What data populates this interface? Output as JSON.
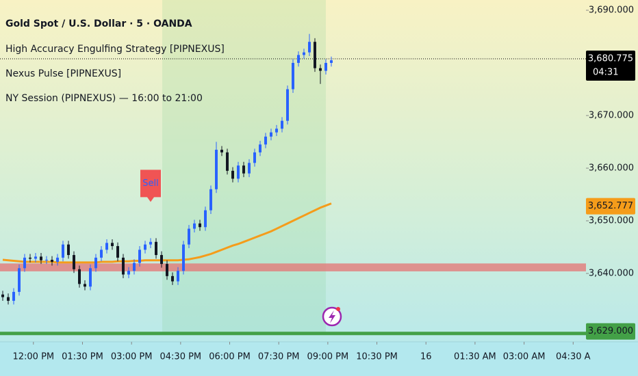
{
  "chart_data": {
    "type": "candlestick",
    "title": "Gold Spot / U.S. Dollar · 5 · OANDA",
    "indicators": [
      "High Accuracy Engulfing Strategy [PIPNEXUS]",
      "Nexus Pulse [PIPNEXUS]",
      "NY Session (PIPNEXUS) — 16:00 to 21:00"
    ],
    "up_color": "#2962ff",
    "down_color": "#131722",
    "x": [
      0,
      1,
      2,
      3,
      4,
      5,
      6,
      7,
      8,
      9,
      10,
      11,
      12,
      13,
      14,
      15,
      16,
      17,
      18,
      19,
      20,
      21,
      22,
      23,
      24,
      25,
      26,
      27,
      28,
      29,
      30,
      31,
      32,
      33,
      34,
      35,
      36,
      37,
      38,
      39,
      40,
      41,
      42,
      43,
      44,
      45,
      46,
      47,
      48,
      49,
      50,
      51,
      52,
      53,
      54,
      55,
      56,
      57,
      58,
      59,
      60
    ],
    "open": [
      3636,
      3635.5,
      3634.8,
      3636.5,
      3641,
      3643,
      3642.8,
      3643.2,
      3642.5,
      3642.6,
      3642.2,
      3643,
      3645.5,
      3643.5,
      3640.8,
      3638,
      3637.5,
      3641,
      3643,
      3644.5,
      3645.8,
      3645.2,
      3643,
      3639.8,
      3640.5,
      3642,
      3644.5,
      3645.5,
      3646,
      3643.5,
      3641.8,
      3639.5,
      3638.5,
      3640.5,
      3645.5,
      3648.5,
      3649.5,
      3648.8,
      3652,
      3656,
      3663.5,
      3663,
      3659.5,
      3658,
      3660.5,
      3659,
      3661,
      3663,
      3664.5,
      3666,
      3666.8,
      3667.5,
      3669,
      3675,
      3680,
      3681.5,
      3682,
      3684,
      3679,
      3678.5,
      3680
    ],
    "high": [
      3636.7,
      3636.2,
      3637.2,
      3641.7,
      3643.7,
      3643.7,
      3643.9,
      3643.9,
      3643.3,
      3643.3,
      3643.7,
      3646.2,
      3646.2,
      3644.2,
      3641.5,
      3638.7,
      3641.7,
      3643.7,
      3645.2,
      3646.5,
      3646.5,
      3645.9,
      3643.7,
      3641.2,
      3642.7,
      3645.2,
      3646.2,
      3646.7,
      3646.7,
      3644.2,
      3642.5,
      3640.2,
      3641.2,
      3646.2,
      3649.2,
      3650.2,
      3650.2,
      3652.7,
      3656.7,
      3665,
      3664.2,
      3663.7,
      3660.2,
      3661.2,
      3661.2,
      3661.7,
      3663.7,
      3665.2,
      3666.7,
      3667.5,
      3668.2,
      3669.7,
      3675.7,
      3680.7,
      3682.2,
      3682.7,
      3685.5,
      3684.7,
      3679.7,
      3680.7,
      3681.2
    ],
    "low": [
      3634.8,
      3634.1,
      3634.1,
      3635.8,
      3640.3,
      3642.1,
      3642.1,
      3641.8,
      3641.8,
      3641.5,
      3641.5,
      3642.3,
      3642.8,
      3640.1,
      3637.3,
      3636.8,
      3636.8,
      3640.3,
      3642.3,
      3643.8,
      3644.5,
      3642.3,
      3639.1,
      3639.1,
      3639.8,
      3641.3,
      3643.8,
      3644.8,
      3642.8,
      3641.1,
      3638.8,
      3637.8,
      3637.8,
      3639.8,
      3644.8,
      3647.8,
      3648.1,
      3648.1,
      3651.3,
      3655.3,
      3662.3,
      3658.8,
      3657.3,
      3657.3,
      3658.3,
      3658.3,
      3660.3,
      3662.3,
      3663.8,
      3665.3,
      3666.1,
      3666.8,
      3668.3,
      3674.3,
      3679.3,
      3680.8,
      3681.3,
      3678.3,
      3676,
      3677.8,
      3679.3
    ],
    "close": [
      3635.5,
      3634.8,
      3636.5,
      3641,
      3643,
      3642.8,
      3643.2,
      3642.5,
      3642.6,
      3642.2,
      3643,
      3645.5,
      3643.5,
      3640.8,
      3638,
      3637.5,
      3641,
      3643,
      3644.5,
      3645.8,
      3645.2,
      3643,
      3639.8,
      3640.5,
      3642,
      3644.5,
      3645.5,
      3646,
      3643.5,
      3641.8,
      3639.5,
      3638.5,
      3640.5,
      3645.5,
      3648.5,
      3649.5,
      3648.8,
      3652,
      3656,
      3663.5,
      3663,
      3659.5,
      3658,
      3660.5,
      3659,
      3661,
      3663,
      3664.5,
      3666,
      3666.8,
      3667.5,
      3669,
      3675,
      3680,
      3681.5,
      3682,
      3684,
      3679,
      3678.5,
      3680,
      3680.5
    ],
    "series": [
      {
        "color": "#f59c1a",
        "values": [
          3642.6,
          3642.5,
          3642.4,
          3642.3,
          3642.2,
          3642.2,
          3642.2,
          3642.2,
          3642.2,
          3642.2,
          3642.1,
          3642.1,
          3642.1,
          3642.1,
          3642.1,
          3642.1,
          3642.1,
          3642.1,
          3642.2,
          3642.2,
          3642.2,
          3642.3,
          3642.3,
          3642.3,
          3642.4,
          3642.4,
          3642.5,
          3642.5,
          3642.5,
          3642.5,
          3642.5,
          3642.5,
          3642.5,
          3642.6,
          3642.7,
          3642.9,
          3643.1,
          3643.4,
          3643.7,
          3644.1,
          3644.5,
          3644.9,
          3645.3,
          3645.6,
          3646,
          3646.4,
          3646.8,
          3647.2,
          3647.6,
          3648,
          3648.5,
          3649,
          3649.5,
          3650,
          3650.5,
          3651,
          3651.5,
          3652,
          3652.5,
          3652.9,
          3653.3
        ]
      }
    ],
    "zones": [
      {
        "from": 3640.4,
        "to": 3641.9,
        "color": "#e57373"
      }
    ],
    "signals": [
      {
        "label": "Sell",
        "x": 27,
        "color": "#f05454",
        "text_color": "#2962ff"
      }
    ],
    "price_labels": [
      {
        "value": 3680.775,
        "label": "3,680.775",
        "countdown": "04:31",
        "color": "#000000",
        "line": "dotted"
      },
      {
        "value": 3652.777,
        "label": "3,652.777",
        "color": "#f59c1a"
      },
      {
        "value": 3629,
        "label": "3,629.000",
        "color": "#43a047",
        "line": "solid"
      }
    ],
    "xlim": [
      -0.5,
      106.5
    ],
    "xticks": [
      {
        "value": 5.6,
        "label": "12:00 PM"
      },
      {
        "value": 14.56,
        "label": "01:30 PM"
      },
      {
        "value": 23.52,
        "label": "03:00 PM"
      },
      {
        "value": 32.48,
        "label": "04:30 PM"
      },
      {
        "value": 41.44,
        "label": "06:00 PM"
      },
      {
        "value": 50.4,
        "label": "07:30 PM"
      },
      {
        "value": 59.36,
        "label": "09:00 PM"
      },
      {
        "value": 68.32,
        "label": "10:30 PM"
      },
      {
        "value": 77.28,
        "label": "16"
      },
      {
        "value": 86.24,
        "label": "01:30 AM"
      },
      {
        "value": 95.2,
        "label": "03:00 AM"
      },
      {
        "value": 104.16,
        "label": "04:30 A"
      }
    ],
    "ylim": [
      3628.7,
      3691.95
    ],
    "yticks": [
      {
        "value": 3690,
        "label": "3,690.000"
      },
      {
        "value": 3670,
        "label": "3,670.000"
      },
      {
        "value": 3660,
        "label": "3,660.000"
      },
      {
        "value": 3650,
        "label": "3,650.000"
      },
      {
        "value": 3640,
        "label": "3,640.000"
      }
    ]
  }
}
